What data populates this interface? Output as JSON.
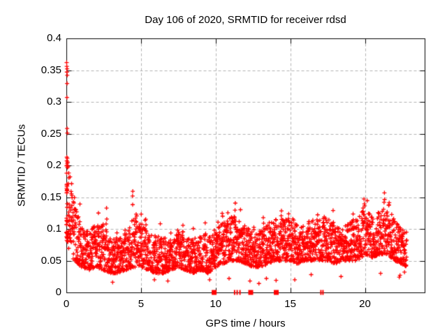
{
  "chart_data": {
    "type": "scatter",
    "title": "Day 106 of 2020, SRMTID for receiver rdsd",
    "xlabel": "GPS time / hours",
    "ylabel": "SRMTID / TECUs",
    "xlim": [
      0,
      24
    ],
    "ylim": [
      0,
      0.4
    ],
    "xticks": [
      {
        "v": 0,
        "label": "0"
      },
      {
        "v": 5,
        "label": "5"
      },
      {
        "v": 10,
        "label": "10"
      },
      {
        "v": 15,
        "label": "15"
      },
      {
        "v": 20,
        "label": "20"
      }
    ],
    "yticks": [
      {
        "v": 0,
        "label": "0"
      },
      {
        "v": 0.05,
        "label": "0.05"
      },
      {
        "v": 0.1,
        "label": "0.1"
      },
      {
        "v": 0.15,
        "label": "0.15"
      },
      {
        "v": 0.2,
        "label": "0.2"
      },
      {
        "v": 0.25,
        "label": "0.25"
      },
      {
        "v": 0.3,
        "label": "0.3"
      },
      {
        "v": 0.35,
        "label": "0.35"
      },
      {
        "v": 0.4,
        "label": "0.4"
      }
    ],
    "grid": {
      "show": true,
      "style": "dashed",
      "color": "#b0b0b0"
    },
    "border_color": "#000000",
    "legend": {
      "show": false
    },
    "marker": {
      "shape": "plus",
      "color": "#ff0000",
      "size": 7
    },
    "scatter_model": {
      "samples_per_hour": 120,
      "t_end": 22.8,
      "envelope": [
        [
          0.0,
          0.085,
          0.215
        ],
        [
          0.15,
          0.07,
          0.19
        ],
        [
          0.3,
          0.06,
          0.17
        ],
        [
          0.5,
          0.05,
          0.145
        ],
        [
          0.8,
          0.045,
          0.12
        ],
        [
          1.0,
          0.04,
          0.105
        ],
        [
          1.5,
          0.035,
          0.095
        ],
        [
          2.0,
          0.04,
          0.11
        ],
        [
          2.5,
          0.035,
          0.105
        ],
        [
          3.0,
          0.03,
          0.085
        ],
        [
          3.5,
          0.03,
          0.09
        ],
        [
          4.0,
          0.035,
          0.1
        ],
        [
          4.5,
          0.04,
          0.125
        ],
        [
          5.0,
          0.04,
          0.11
        ],
        [
          5.5,
          0.035,
          0.09
        ],
        [
          6.0,
          0.03,
          0.09
        ],
        [
          6.5,
          0.03,
          0.085
        ],
        [
          7.0,
          0.035,
          0.09
        ],
        [
          7.5,
          0.04,
          0.1
        ],
        [
          8.0,
          0.035,
          0.085
        ],
        [
          8.5,
          0.03,
          0.085
        ],
        [
          9.0,
          0.035,
          0.09
        ],
        [
          9.5,
          0.03,
          0.09
        ],
        [
          10.0,
          0.04,
          0.1
        ],
        [
          10.5,
          0.045,
          0.11
        ],
        [
          11.0,
          0.05,
          0.12
        ],
        [
          11.5,
          0.05,
          0.12
        ],
        [
          12.0,
          0.045,
          0.105
        ],
        [
          12.5,
          0.04,
          0.1
        ],
        [
          13.0,
          0.04,
          0.1
        ],
        [
          13.5,
          0.045,
          0.11
        ],
        [
          14.0,
          0.05,
          0.115
        ],
        [
          14.5,
          0.05,
          0.115
        ],
        [
          15.0,
          0.05,
          0.115
        ],
        [
          15.5,
          0.045,
          0.105
        ],
        [
          16.0,
          0.05,
          0.11
        ],
        [
          16.5,
          0.05,
          0.115
        ],
        [
          17.0,
          0.05,
          0.115
        ],
        [
          17.5,
          0.05,
          0.12
        ],
        [
          18.0,
          0.045,
          0.105
        ],
        [
          18.5,
          0.05,
          0.105
        ],
        [
          19.0,
          0.05,
          0.11
        ],
        [
          19.5,
          0.05,
          0.12
        ],
        [
          20.0,
          0.06,
          0.14
        ],
        [
          20.5,
          0.055,
          0.12
        ],
        [
          21.0,
          0.06,
          0.13
        ],
        [
          21.5,
          0.06,
          0.135
        ],
        [
          22.0,
          0.05,
          0.115
        ],
        [
          22.4,
          0.045,
          0.1
        ],
        [
          22.8,
          0.04,
          0.095
        ]
      ],
      "spikes": [
        [
          0.35,
          0.185
        ],
        [
          0.55,
          0.16
        ],
        [
          0.9,
          0.155
        ],
        [
          1.4,
          0.105
        ],
        [
          1.9,
          0.13
        ],
        [
          2.15,
          0.145
        ],
        [
          2.45,
          0.135
        ],
        [
          2.7,
          0.145
        ],
        [
          3.4,
          0.1
        ],
        [
          3.9,
          0.12
        ],
        [
          4.45,
          0.175
        ],
        [
          4.7,
          0.158
        ],
        [
          5.0,
          0.145
        ],
        [
          5.3,
          0.135
        ],
        [
          6.3,
          0.115
        ],
        [
          7.0,
          0.11
        ],
        [
          7.45,
          0.13
        ],
        [
          7.8,
          0.125
        ],
        [
          8.5,
          0.105
        ],
        [
          9.3,
          0.12
        ],
        [
          10.15,
          0.13
        ],
        [
          10.45,
          0.15
        ],
        [
          10.8,
          0.14
        ],
        [
          11.3,
          0.155
        ],
        [
          11.65,
          0.15
        ],
        [
          12.1,
          0.125
        ],
        [
          12.55,
          0.132
        ],
        [
          13.2,
          0.13
        ],
        [
          13.9,
          0.142
        ],
        [
          14.4,
          0.135
        ],
        [
          14.9,
          0.15
        ],
        [
          15.2,
          0.14
        ],
        [
          16.2,
          0.13
        ],
        [
          16.85,
          0.15
        ],
        [
          17.25,
          0.138
        ],
        [
          17.85,
          0.145
        ],
        [
          18.7,
          0.125
        ],
        [
          19.2,
          0.13
        ],
        [
          19.95,
          0.166
        ],
        [
          20.15,
          0.17
        ],
        [
          21.3,
          0.165
        ],
        [
          21.6,
          0.175
        ],
        [
          22.5,
          0.125
        ]
      ],
      "outliers": [
        [
          0.02,
          0.362
        ],
        [
          0.03,
          0.356
        ],
        [
          0.05,
          0.352
        ],
        [
          0.04,
          0.347
        ],
        [
          0.06,
          0.342
        ],
        [
          0.05,
          0.329
        ],
        [
          0.04,
          0.307
        ],
        [
          0.05,
          0.258
        ],
        [
          0.07,
          0.251
        ],
        [
          0.03,
          0.213
        ],
        [
          0.09,
          0.205
        ],
        [
          0.12,
          0.198
        ],
        [
          0.16,
          0.188
        ],
        [
          0.25,
          0.182
        ],
        [
          3.1,
          0.016
        ],
        [
          5.9,
          0.02
        ],
        [
          6.8,
          0.018
        ],
        [
          9.6,
          0.02
        ],
        [
          10.9,
          0.022
        ],
        [
          12.3,
          0.018
        ],
        [
          12.9,
          0.014
        ],
        [
          13.4,
          0.022
        ],
        [
          14.05,
          0.019
        ],
        [
          15.3,
          0.02
        ],
        [
          16.4,
          0.028
        ],
        [
          18.4,
          0.025
        ],
        [
          21.05,
          0.03
        ],
        [
          22.3,
          0.024
        ],
        [
          22.35,
          0.027
        ],
        [
          22.65,
          0.032
        ]
      ],
      "start_burst": {
        "t_max": 0.07,
        "n": 24,
        "v_lo": 0.085,
        "v_hi": 0.212
      },
      "zero_markers": [
        {
          "t": 9.9,
          "kind": "square"
        },
        {
          "t": 11.27,
          "kind": "bar"
        },
        {
          "t": 11.44,
          "kind": "bar"
        },
        {
          "t": 11.63,
          "kind": "bar"
        },
        {
          "t": 12.35,
          "kind": "square"
        },
        {
          "t": 14.06,
          "kind": "square"
        },
        {
          "t": 17.05,
          "kind": "bar"
        },
        {
          "t": 17.19,
          "kind": "bar"
        }
      ]
    }
  }
}
